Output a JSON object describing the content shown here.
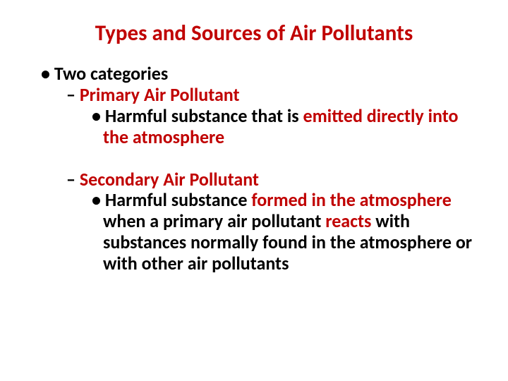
{
  "title": "Types and Sources of Air Pollutants",
  "l1": "Two categories",
  "primary": {
    "label": "Primary Air Pollutant",
    "desc_pre": "Harmful substance that is ",
    "desc_em": "emitted directly into the atmosphere"
  },
  "secondary": {
    "label": "Secondary Air Pollutant",
    "desc_a": "Harmful substance ",
    "desc_b": "formed in the atmosphere",
    "desc_c": " when a primary air pollutant ",
    "desc_d": "reacts",
    "desc_e": " with substances normally found in the atmosphere or with other air pollutants"
  },
  "colors": {
    "accent": "#c00000",
    "text": "#000000",
    "background": "#ffffff"
  }
}
